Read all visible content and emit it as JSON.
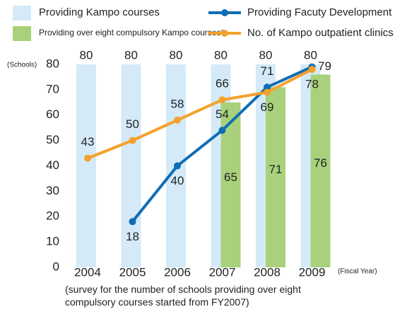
{
  "chart_data": {
    "type": "bar-line",
    "y_label": "(Schools)",
    "x_label": "(Fiscal Year)",
    "note": "(survey for the number of schools providing over eight compulsory courses started from FY2007)",
    "categories": [
      "2004",
      "2005",
      "2006",
      "2007",
      "2008",
      "2009"
    ],
    "series": [
      {
        "name": "Providing Kampo courses",
        "type": "bar",
        "color": "#d4eaf8",
        "values": [
          80,
          80,
          80,
          80,
          80,
          80
        ]
      },
      {
        "name": "Providing over eight compulsory Kampo courses*",
        "type": "bar",
        "color": "#a9d17c",
        "values": [
          null,
          null,
          null,
          65,
          71,
          76
        ]
      },
      {
        "name": "Providing Facuty Development",
        "type": "line",
        "color": "#0f6db4",
        "values": [
          null,
          18,
          40,
          54,
          71,
          79
        ]
      },
      {
        "name": "No. of Kampo outpatient clinics",
        "type": "line",
        "color": "#f4a12c",
        "values": [
          43,
          50,
          58,
          66,
          69,
          78
        ]
      }
    ],
    "ylim": [
      0,
      80
    ],
    "yticks": [
      0,
      10,
      20,
      30,
      40,
      50,
      60,
      70,
      80
    ],
    "grid": false
  }
}
